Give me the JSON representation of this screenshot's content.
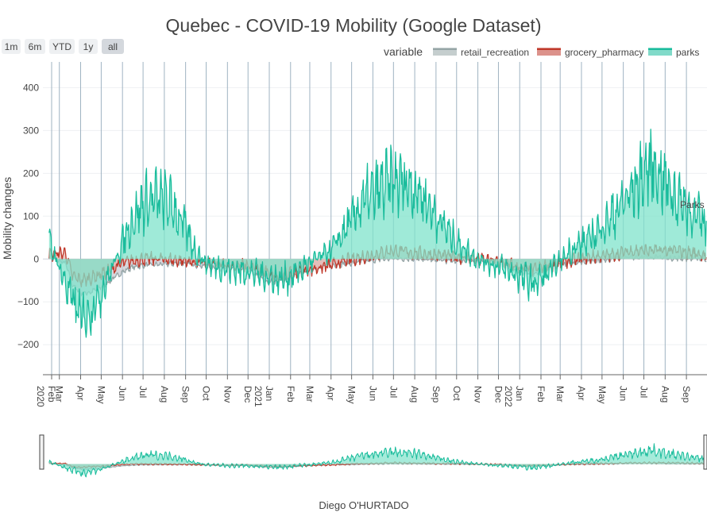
{
  "title": "Quebec - COVID-19 Mobility (Google Dataset)",
  "footer": "Diego O'HURTADO",
  "range_buttons": [
    "1m",
    "6m",
    "YTD",
    "1y",
    "all"
  ],
  "selected_range": "all",
  "legend": {
    "title": "variable",
    "placement": "top-right",
    "items": [
      {
        "name": "retail_recreation",
        "color": "#95a5a6"
      },
      {
        "name": "grocery_pharmacy",
        "color": "#c0392b"
      },
      {
        "name": "parks",
        "color": "#1abc9c"
      }
    ]
  },
  "chart_data": {
    "type": "area",
    "title": "Quebec - COVID-19 Mobility (Google Dataset)",
    "ylabel": "Mobility changes",
    "xlabel": "",
    "ylim": [
      -270,
      460
    ],
    "xlim": [
      "2020-02-06",
      "2022-10-01"
    ],
    "grid": true,
    "yticks": [
      -200,
      -100,
      0,
      100,
      200,
      300,
      400
    ],
    "ytick_labels": [
      "−200",
      "−100",
      "0",
      "100",
      "200",
      "300",
      "400"
    ],
    "xticks": [
      {
        "date": "2020-02-01",
        "label": "Feb",
        "year": "2020"
      },
      {
        "date": "2020-03-01",
        "label": "Mar"
      },
      {
        "date": "2020-04-01",
        "label": "Apr"
      },
      {
        "date": "2020-05-01",
        "label": "May"
      },
      {
        "date": "2020-06-01",
        "label": "Jun"
      },
      {
        "date": "2020-07-01",
        "label": "Jul"
      },
      {
        "date": "2020-08-01",
        "label": "Aug"
      },
      {
        "date": "2020-09-01",
        "label": "Sep"
      },
      {
        "date": "2020-10-01",
        "label": "Oct"
      },
      {
        "date": "2020-11-01",
        "label": "Nov"
      },
      {
        "date": "2020-12-01",
        "label": "Dec"
      },
      {
        "date": "2021-01-01",
        "label": "Jan",
        "year": "2021"
      },
      {
        "date": "2021-02-01",
        "label": "Feb"
      },
      {
        "date": "2021-03-01",
        "label": "Mar"
      },
      {
        "date": "2021-04-01",
        "label": "Apr"
      },
      {
        "date": "2021-05-01",
        "label": "May"
      },
      {
        "date": "2021-06-01",
        "label": "Jun"
      },
      {
        "date": "2021-07-01",
        "label": "Jul"
      },
      {
        "date": "2021-08-01",
        "label": "Aug"
      },
      {
        "date": "2021-09-01",
        "label": "Sep"
      },
      {
        "date": "2021-10-01",
        "label": "Oct"
      },
      {
        "date": "2021-11-01",
        "label": "Nov"
      },
      {
        "date": "2021-12-01",
        "label": "Dec"
      },
      {
        "date": "2022-01-01",
        "label": "Jan",
        "year": "2022"
      },
      {
        "date": "2022-02-01",
        "label": "Feb"
      },
      {
        "date": "2022-03-01",
        "label": "Mar"
      },
      {
        "date": "2022-04-01",
        "label": "Apr"
      },
      {
        "date": "2022-05-01",
        "label": "May"
      },
      {
        "date": "2022-06-01",
        "label": "Jun"
      },
      {
        "date": "2022-07-01",
        "label": "Jul"
      },
      {
        "date": "2022-08-01",
        "label": "Aug"
      },
      {
        "date": "2022-09-01",
        "label": "Sep"
      }
    ],
    "annotations": [
      {
        "text": "Parks",
        "near": "2022-09"
      }
    ],
    "series": [
      {
        "name": "retail_recreation",
        "color": "#95a5a6",
        "fill": "#c9c9d1",
        "points": [
          [
            "2020-02-15",
            5
          ],
          [
            "2020-03-10",
            -10
          ],
          [
            "2020-03-20",
            -60
          ],
          [
            "2020-04-01",
            -80
          ],
          [
            "2020-04-15",
            -78
          ],
          [
            "2020-05-01",
            -65
          ],
          [
            "2020-05-15",
            -50
          ],
          [
            "2020-06-01",
            -30
          ],
          [
            "2020-06-15",
            -20
          ],
          [
            "2020-07-01",
            -15
          ],
          [
            "2020-08-01",
            -12
          ],
          [
            "2020-09-01",
            -10
          ],
          [
            "2020-10-01",
            -18
          ],
          [
            "2020-11-01",
            -22
          ],
          [
            "2020-12-01",
            -25
          ],
          [
            "2020-12-25",
            -50
          ],
          [
            "2021-01-10",
            -55
          ],
          [
            "2021-02-01",
            -45
          ],
          [
            "2021-03-01",
            -25
          ],
          [
            "2021-04-01",
            -15
          ],
          [
            "2021-05-01",
            -10
          ],
          [
            "2021-06-01",
            -3
          ],
          [
            "2021-07-01",
            2
          ],
          [
            "2021-08-01",
            0
          ],
          [
            "2021-09-01",
            -3
          ],
          [
            "2021-10-01",
            -5
          ],
          [
            "2021-11-01",
            -5
          ],
          [
            "2021-12-01",
            -8
          ],
          [
            "2022-01-01",
            -30
          ],
          [
            "2022-01-20",
            -35
          ],
          [
            "2022-02-15",
            -20
          ],
          [
            "2022-03-15",
            -10
          ],
          [
            "2022-04-15",
            -5
          ],
          [
            "2022-05-15",
            0
          ],
          [
            "2022-06-15",
            5
          ],
          [
            "2022-07-15",
            5
          ],
          [
            "2022-08-15",
            2
          ],
          [
            "2022-09-30",
            0
          ]
        ]
      },
      {
        "name": "grocery_pharmacy",
        "color": "#c0392b",
        "fill": "#e8b6ae",
        "points": [
          [
            "2020-02-15",
            10
          ],
          [
            "2020-03-10",
            15
          ],
          [
            "2020-03-20",
            -40
          ],
          [
            "2020-04-01",
            -50
          ],
          [
            "2020-04-15",
            -45
          ],
          [
            "2020-05-01",
            -35
          ],
          [
            "2020-05-15",
            -25
          ],
          [
            "2020-06-01",
            -10
          ],
          [
            "2020-06-15",
            -5
          ],
          [
            "2020-07-01",
            0
          ],
          [
            "2020-08-01",
            0
          ],
          [
            "2020-09-01",
            -5
          ],
          [
            "2020-10-01",
            -10
          ],
          [
            "2020-11-01",
            -15
          ],
          [
            "2020-12-01",
            -15
          ],
          [
            "2020-12-25",
            -30
          ],
          [
            "2021-01-10",
            -40
          ],
          [
            "2021-02-01",
            -35
          ],
          [
            "2021-03-01",
            -25
          ],
          [
            "2021-04-01",
            -15
          ],
          [
            "2021-05-01",
            0
          ],
          [
            "2021-06-01",
            10
          ],
          [
            "2021-07-01",
            20
          ],
          [
            "2021-08-01",
            15
          ],
          [
            "2021-09-01",
            10
          ],
          [
            "2021-10-01",
            5
          ],
          [
            "2021-11-01",
            0
          ],
          [
            "2021-12-01",
            -5
          ],
          [
            "2022-01-01",
            -20
          ],
          [
            "2022-01-20",
            -25
          ],
          [
            "2022-02-15",
            -15
          ],
          [
            "2022-03-15",
            -5
          ],
          [
            "2022-04-15",
            5
          ],
          [
            "2022-05-15",
            10
          ],
          [
            "2022-06-15",
            20
          ],
          [
            "2022-07-15",
            20
          ],
          [
            "2022-08-15",
            20
          ],
          [
            "2022-09-30",
            10
          ]
        ]
      },
      {
        "name": "parks",
        "color": "#1abc9c",
        "fill": "#7fe3cb",
        "points": [
          [
            "2020-02-15",
            40
          ],
          [
            "2020-03-01",
            -20
          ],
          [
            "2020-03-15",
            -80
          ],
          [
            "2020-04-01",
            -140
          ],
          [
            "2020-04-15",
            -120
          ],
          [
            "2020-05-01",
            -80
          ],
          [
            "2020-05-15",
            -30
          ],
          [
            "2020-06-01",
            40
          ],
          [
            "2020-06-15",
            90
          ],
          [
            "2020-07-01",
            130
          ],
          [
            "2020-07-15",
            140
          ],
          [
            "2020-08-01",
            140
          ],
          [
            "2020-08-15",
            120
          ],
          [
            "2020-09-01",
            70
          ],
          [
            "2020-09-15",
            20
          ],
          [
            "2020-10-01",
            -10
          ],
          [
            "2020-11-01",
            -25
          ],
          [
            "2020-12-01",
            -30
          ],
          [
            "2020-12-25",
            -40
          ],
          [
            "2021-01-15",
            -50
          ],
          [
            "2021-02-01",
            -40
          ],
          [
            "2021-03-01",
            -10
          ],
          [
            "2021-04-01",
            20
          ],
          [
            "2021-05-01",
            90
          ],
          [
            "2021-05-15",
            130
          ],
          [
            "2021-06-01",
            150
          ],
          [
            "2021-06-15",
            170
          ],
          [
            "2021-07-01",
            180
          ],
          [
            "2021-07-15",
            180
          ],
          [
            "2021-08-01",
            170
          ],
          [
            "2021-08-15",
            140
          ],
          [
            "2021-09-01",
            100
          ],
          [
            "2021-10-01",
            40
          ],
          [
            "2021-11-01",
            0
          ],
          [
            "2021-12-01",
            -20
          ],
          [
            "2022-01-01",
            -40
          ],
          [
            "2022-01-20",
            -60
          ],
          [
            "2022-02-15",
            -30
          ],
          [
            "2022-03-15",
            20
          ],
          [
            "2022-04-15",
            50
          ],
          [
            "2022-05-15",
            100
          ],
          [
            "2022-06-15",
            160
          ],
          [
            "2022-07-01",
            200
          ],
          [
            "2022-07-15",
            220
          ],
          [
            "2022-08-01",
            180
          ],
          [
            "2022-08-15",
            150
          ],
          [
            "2022-09-15",
            100
          ],
          [
            "2022-09-30",
            80
          ]
        ]
      }
    ]
  }
}
